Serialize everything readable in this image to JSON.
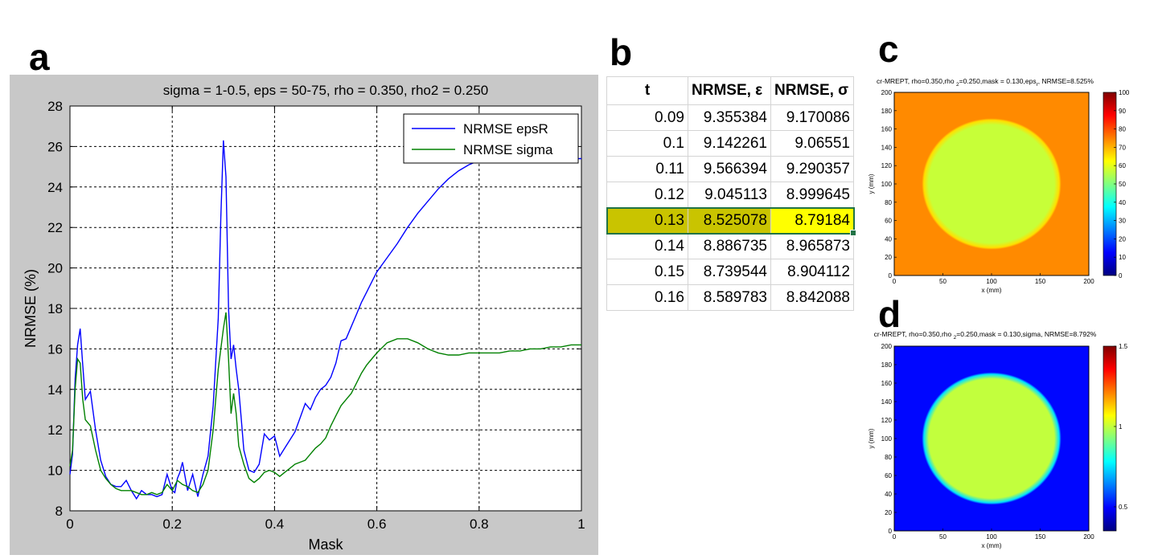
{
  "panel_letters": [
    "a",
    "b",
    "c",
    "d"
  ],
  "chart_data": [
    {
      "type": "line",
      "title": "sigma = 1-0.5, eps = 50-75, rho = 0.350, rho2 = 0.250",
      "xlabel": "Mask",
      "ylabel": "NRMSE (%)",
      "xlim": [
        0,
        1
      ],
      "ylim": [
        8,
        28
      ],
      "xticks": [
        "0",
        "0.2",
        "0.4",
        "0.6",
        "0.8",
        "1"
      ],
      "yticks": [
        "8",
        "10",
        "12",
        "14",
        "16",
        "18",
        "20",
        "22",
        "24",
        "26",
        "28"
      ],
      "grid": true,
      "legend_position": "top-right",
      "series": [
        {
          "name": "NRMSE epsR",
          "color": "#0000ff",
          "x": [
            0,
            0.005,
            0.01,
            0.015,
            0.02,
            0.025,
            0.03,
            0.04,
            0.05,
            0.06,
            0.07,
            0.08,
            0.09,
            0.1,
            0.11,
            0.12,
            0.13,
            0.14,
            0.15,
            0.16,
            0.17,
            0.18,
            0.19,
            0.2,
            0.205,
            0.21,
            0.215,
            0.22,
            0.23,
            0.24,
            0.25,
            0.26,
            0.27,
            0.28,
            0.29,
            0.295,
            0.3,
            0.305,
            0.31,
            0.315,
            0.32,
            0.325,
            0.33,
            0.335,
            0.34,
            0.35,
            0.36,
            0.37,
            0.38,
            0.39,
            0.4,
            0.41,
            0.42,
            0.43,
            0.44,
            0.45,
            0.46,
            0.47,
            0.48,
            0.49,
            0.5,
            0.51,
            0.52,
            0.53,
            0.54,
            0.55,
            0.56,
            0.57,
            0.58,
            0.59,
            0.6,
            0.62,
            0.64,
            0.66,
            0.68,
            0.7,
            0.72,
            0.74,
            0.76,
            0.78,
            0.8,
            0.82,
            0.84,
            0.86,
            0.88,
            0.9,
            0.92,
            0.94,
            0.96,
            0.98,
            1.0
          ],
          "y": [
            9.8,
            10.8,
            14.5,
            16.2,
            17.0,
            15.2,
            13.5,
            13.9,
            12.0,
            10.5,
            9.7,
            9.3,
            9.2,
            9.2,
            9.5,
            9.0,
            8.6,
            9.0,
            8.8,
            8.8,
            8.7,
            8.8,
            9.8,
            9.0,
            8.9,
            9.6,
            9.9,
            10.4,
            9.0,
            9.8,
            8.7,
            9.8,
            10.7,
            13.2,
            17.5,
            22.5,
            26.3,
            24.5,
            18.0,
            15.5,
            16.2,
            15.0,
            14.0,
            12.5,
            11.0,
            10.0,
            9.9,
            10.3,
            11.8,
            11.5,
            11.7,
            10.7,
            11.1,
            11.5,
            11.9,
            12.6,
            13.3,
            13.0,
            13.6,
            14.0,
            14.2,
            14.6,
            15.3,
            16.4,
            16.5,
            17.1,
            17.7,
            18.3,
            18.8,
            19.3,
            19.8,
            20.5,
            21.2,
            22.0,
            22.7,
            23.3,
            23.9,
            24.4,
            24.8,
            25.1,
            25.3,
            25.4,
            25.4,
            25.4,
            25.4,
            25.4,
            25.4,
            25.4,
            25.4,
            25.4,
            25.4
          ]
        },
        {
          "name": "NRMSE sigma",
          "color": "#008000",
          "x": [
            0,
            0.005,
            0.01,
            0.015,
            0.02,
            0.025,
            0.03,
            0.04,
            0.05,
            0.06,
            0.07,
            0.08,
            0.09,
            0.1,
            0.11,
            0.12,
            0.13,
            0.14,
            0.15,
            0.16,
            0.17,
            0.18,
            0.19,
            0.2,
            0.21,
            0.22,
            0.23,
            0.24,
            0.25,
            0.26,
            0.27,
            0.28,
            0.29,
            0.3,
            0.305,
            0.31,
            0.315,
            0.32,
            0.325,
            0.33,
            0.34,
            0.35,
            0.36,
            0.37,
            0.38,
            0.39,
            0.4,
            0.41,
            0.42,
            0.43,
            0.44,
            0.45,
            0.46,
            0.47,
            0.48,
            0.49,
            0.5,
            0.51,
            0.52,
            0.53,
            0.54,
            0.55,
            0.56,
            0.57,
            0.58,
            0.59,
            0.6,
            0.62,
            0.64,
            0.66,
            0.68,
            0.7,
            0.72,
            0.74,
            0.76,
            0.78,
            0.8,
            0.82,
            0.84,
            0.86,
            0.88,
            0.9,
            0.92,
            0.94,
            0.96,
            0.98,
            1.0
          ],
          "y": [
            10.2,
            11.0,
            14.0,
            15.5,
            15.3,
            13.5,
            12.5,
            12.2,
            11.0,
            10.0,
            9.6,
            9.3,
            9.1,
            9.0,
            9.0,
            9.0,
            8.9,
            8.8,
            8.8,
            8.9,
            8.8,
            8.9,
            9.3,
            9.0,
            9.5,
            9.3,
            9.2,
            9.0,
            8.9,
            9.3,
            10.0,
            12.0,
            15.0,
            17.0,
            17.8,
            15.5,
            12.8,
            13.8,
            12.8,
            11.2,
            10.3,
            9.6,
            9.4,
            9.6,
            9.9,
            10.0,
            9.9,
            9.7,
            9.9,
            10.1,
            10.3,
            10.4,
            10.5,
            10.8,
            11.1,
            11.3,
            11.6,
            12.2,
            12.7,
            13.2,
            13.5,
            13.8,
            14.3,
            14.8,
            15.2,
            15.5,
            15.8,
            16.3,
            16.5,
            16.5,
            16.3,
            16.0,
            15.8,
            15.7,
            15.7,
            15.8,
            15.8,
            15.8,
            15.8,
            15.9,
            15.9,
            16.0,
            16.0,
            16.1,
            16.1,
            16.2,
            16.2
          ]
        }
      ]
    },
    {
      "type": "table",
      "columns": [
        "t",
        "NRMSE, ε",
        "NRMSE, σ"
      ],
      "rows": [
        [
          "0.09",
          "9.355384",
          "9.170086"
        ],
        [
          "0.1",
          "9.142261",
          "9.06551"
        ],
        [
          "0.11",
          "9.566394",
          "9.290357"
        ],
        [
          "0.12",
          "9.045113",
          "8.999645"
        ],
        [
          "0.13",
          "8.525078",
          "8.79184"
        ],
        [
          "0.14",
          "8.886735",
          "8.965873"
        ],
        [
          "0.15",
          "8.739544",
          "8.904112"
        ],
        [
          "0.16",
          "8.589783",
          "8.842088"
        ]
      ],
      "selected_row": 4
    },
    {
      "type": "heatmap",
      "title_parts": [
        "cr-MREPT, rho=0.350,rho ",
        "2",
        "=0.250,mask = 0.130,eps",
        "r",
        ", NRMSE=8.525%"
      ],
      "xlabel": "x (mm)",
      "ylabel": "y (mm)",
      "xlim": [
        0,
        200
      ],
      "ylim": [
        0,
        200
      ],
      "xticks": [
        "0",
        "50",
        "100",
        "150",
        "200"
      ],
      "yticks": [
        "0",
        "20",
        "40",
        "60",
        "80",
        "100",
        "120",
        "140",
        "160",
        "180",
        "200"
      ],
      "colorbar_range": [
        0,
        100
      ],
      "colorbar_ticks": [
        "0",
        "10",
        "20",
        "30",
        "40",
        "50",
        "60",
        "70",
        "80",
        "90",
        "100"
      ],
      "colormap": "jet",
      "circle_center": [
        100,
        100
      ],
      "circle_radius": 70,
      "inside_value": 57,
      "outside_value": 74
    },
    {
      "type": "heatmap",
      "title_parts": [
        "cr-MREPT, rho=0.350,rho ",
        "2",
        "=0.250,mask = 0.130,sigma, NRMSE=8.792%"
      ],
      "xlabel": "x (mm)",
      "ylabel": "y (mm)",
      "xlim": [
        0,
        200
      ],
      "ylim": [
        0,
        200
      ],
      "xticks": [
        "0",
        "50",
        "100",
        "150",
        "200"
      ],
      "yticks": [
        "0",
        "20",
        "40",
        "60",
        "80",
        "100",
        "120",
        "140",
        "160",
        "180",
        "200"
      ],
      "colorbar_range": [
        0.35,
        1.5
      ],
      "colorbar_ticks": [
        "0.5",
        "1",
        "1.5"
      ],
      "colormap": "jet",
      "circle_center": [
        100,
        100
      ],
      "circle_radius": 70,
      "inside_value": 1.0,
      "outside_value": 0.5
    }
  ]
}
